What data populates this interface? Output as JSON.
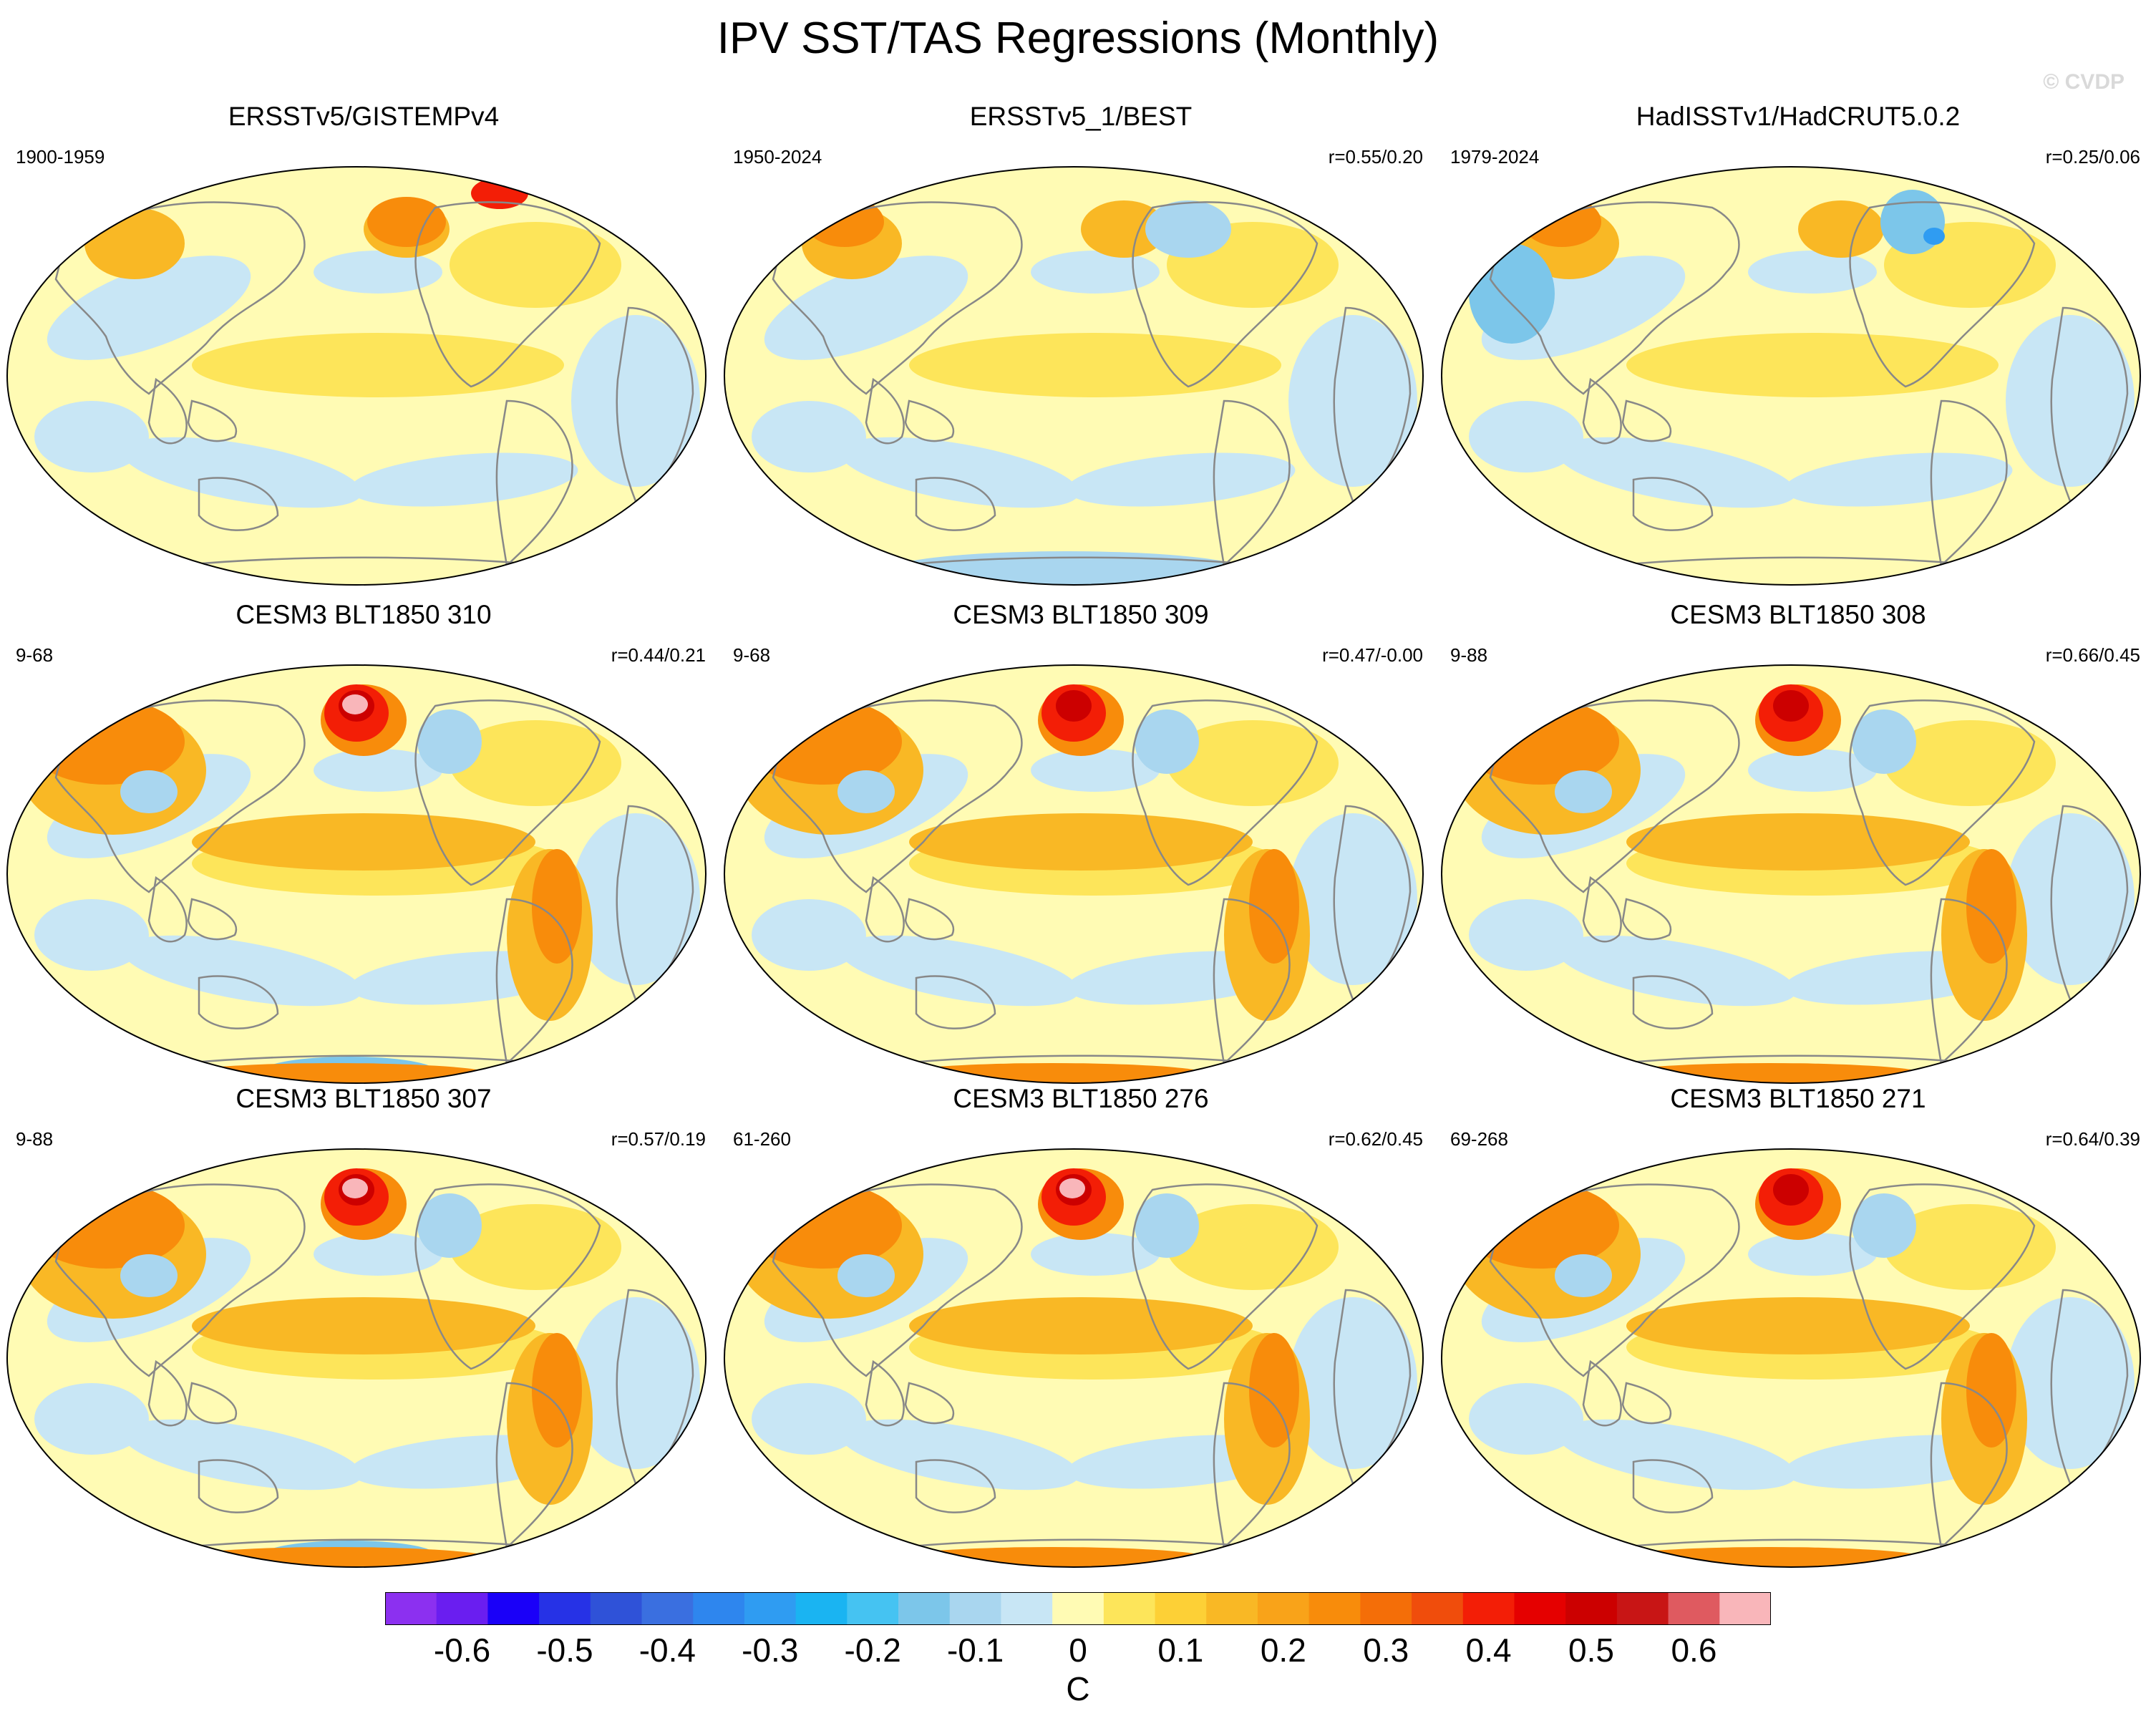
{
  "title": "IPV SST/TAS Regressions (Monthly)",
  "watermark": "© CVDP",
  "panels": [
    {
      "title": "ERSSTv5/GISTEMPv4",
      "left": "1900-1959",
      "right": ""
    },
    {
      "title": "ERSSTv5_1/BEST",
      "left": "1950-2024",
      "right": "r=0.55/0.20"
    },
    {
      "title": "HadISSTv1/HadCRUT5.0.2",
      "left": "1979-2024",
      "right": "r=0.25/0.06"
    },
    {
      "title": "CESM3 BLT1850 310",
      "left": "9-68",
      "right": "r=0.44/0.21"
    },
    {
      "title": "CESM3 BLT1850 309",
      "left": "9-68",
      "right": "r=0.47/-0.00"
    },
    {
      "title": "CESM3 BLT1850 308",
      "left": "9-88",
      "right": "r=0.66/0.45"
    },
    {
      "title": "CESM3 BLT1850 307",
      "left": "9-88",
      "right": "r=0.57/0.19"
    },
    {
      "title": "CESM3 BLT1850 276",
      "left": "61-260",
      "right": "r=0.62/0.45"
    },
    {
      "title": "CESM3 BLT1850 271",
      "left": "69-268",
      "right": "r=0.64/0.39"
    }
  ],
  "chart_data": {
    "type": "heatmap",
    "title": "IPV SST/TAS Regressions (Monthly)",
    "units": "C",
    "colorbar": {
      "levels": [
        -0.65,
        -0.6,
        -0.55,
        -0.5,
        -0.45,
        -0.4,
        -0.35,
        -0.3,
        -0.25,
        -0.2,
        -0.15,
        -0.1,
        -0.05,
        0,
        0.05,
        0.1,
        0.15,
        0.2,
        0.25,
        0.3,
        0.35,
        0.4,
        0.45,
        0.5,
        0.55,
        0.6,
        0.65
      ],
      "tick_labels": [
        "-0.6",
        "-0.5",
        "-0.4",
        "-0.3",
        "-0.2",
        "-0.1",
        "0",
        "0.1",
        "0.2",
        "0.3",
        "0.4",
        "0.5",
        "0.6"
      ],
      "tick_values": [
        -0.6,
        -0.5,
        -0.4,
        -0.3,
        -0.2,
        -0.1,
        0,
        0.1,
        0.2,
        0.3,
        0.4,
        0.5,
        0.6
      ],
      "colors": [
        "#8c30f0",
        "#6a1ef0",
        "#1a00f8",
        "#2632e6",
        "#2f52d8",
        "#3a6fe0",
        "#2e86ee",
        "#2f9cf2",
        "#1ab4f2",
        "#45c3f2",
        "#7cc6ea",
        "#a9d6ef",
        "#c8e6f5",
        "#fffbb4",
        "#fde55a",
        "#fdd036",
        "#f9b825",
        "#f9a319",
        "#f88c0b",
        "#f46e08",
        "#f04d0c",
        "#f31e06",
        "#e50000",
        "#cc0000",
        "#c81515",
        "#df5a60",
        "#f9b6ba"
      ]
    },
    "maps": [
      {
        "name": "ERSSTv5/GISTEMPv4",
        "period": "1900-1959",
        "pattern_corr": null
      },
      {
        "name": "ERSSTv5_1/BEST",
        "period": "1950-2024",
        "pattern_corr": "0.55/0.20"
      },
      {
        "name": "HadISSTv1/HadCRUT5.0.2",
        "period": "1979-2024",
        "pattern_corr": "0.25/0.06"
      },
      {
        "name": "CESM3 BLT1850 310",
        "period": "9-68",
        "pattern_corr": "0.44/0.21"
      },
      {
        "name": "CESM3 BLT1850 309",
        "period": "9-68",
        "pattern_corr": "0.47/-0.00"
      },
      {
        "name": "CESM3 BLT1850 308",
        "period": "9-88",
        "pattern_corr": "0.66/0.45"
      },
      {
        "name": "CESM3 BLT1850 307",
        "period": "9-88",
        "pattern_corr": "0.57/0.19"
      },
      {
        "name": "CESM3 BLT1850 276",
        "period": "61-260",
        "pattern_corr": "0.62/0.45"
      },
      {
        "name": "CESM3 BLT1850 271",
        "period": "69-268",
        "pattern_corr": "0.64/0.39"
      }
    ]
  }
}
